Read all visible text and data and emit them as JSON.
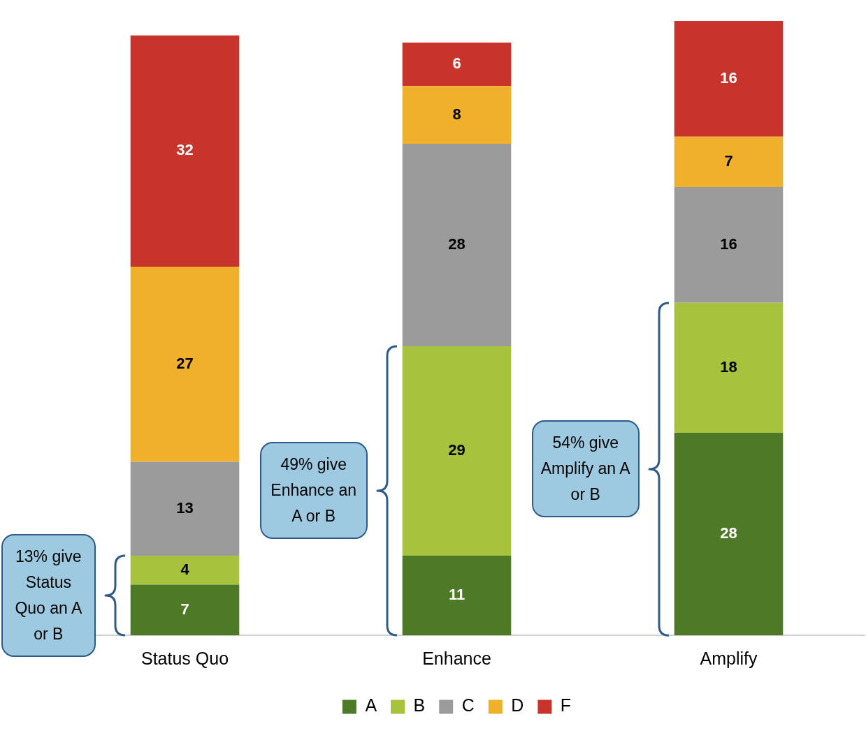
{
  "chart_data": {
    "type": "bar",
    "stacked": true,
    "categories": [
      "Status Quo",
      "Enhance",
      "Amplify"
    ],
    "series": [
      {
        "name": "A",
        "color": "#4e7a28",
        "values": [
          7,
          11,
          28
        ]
      },
      {
        "name": "B",
        "color": "#a7c23c",
        "values": [
          4,
          29,
          18
        ]
      },
      {
        "name": "C",
        "color": "#9b9b9b",
        "values": [
          13,
          28,
          16
        ]
      },
      {
        "name": "D",
        "color": "#f0b02c",
        "values": [
          27,
          8,
          7
        ]
      },
      {
        "name": "F",
        "color": "#c8332b",
        "values": [
          32,
          6,
          16
        ]
      }
    ],
    "data_labels": true,
    "legend": "bottom",
    "grid": false,
    "annotations": [
      "13% give Status Quo an A or B",
      "49% give Enhance an A or B",
      "54% give Amplify an A or B"
    ]
  }
}
